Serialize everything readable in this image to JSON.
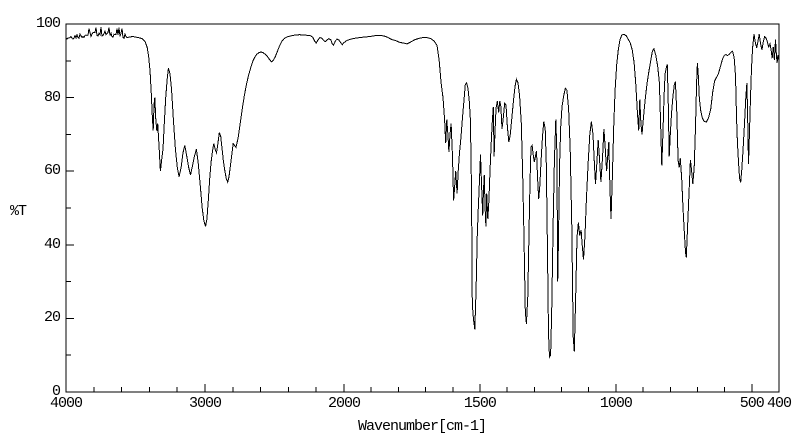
{
  "chart_data": {
    "type": "line",
    "title": "",
    "xlabel": "Wavenumber[cm-1]",
    "ylabel": "%T",
    "x_axis": {
      "min": 400,
      "max": 4000,
      "reversed": true,
      "scale_change_at": 2000,
      "major_ticks": [
        4000,
        3000,
        2000,
        1500,
        1000,
        500,
        400
      ],
      "minor_tick_step_high": 200,
      "minor_tick_step_low": 100
    },
    "y_axis": {
      "min": 0,
      "max": 100,
      "major_ticks": [
        100,
        80,
        60,
        40,
        20,
        0
      ],
      "minor_tick_step": 10
    },
    "line_color": "#000000",
    "background_color": "#ffffff",
    "grid": false,
    "legend": null,
    "noise_region": {
      "from": 4000,
      "to": 3560,
      "amplitude": 0.8
    },
    "points": [
      [
        4000,
        96.3
      ],
      [
        3960,
        96.6
      ],
      [
        3920,
        96.8
      ],
      [
        3880,
        97.0
      ],
      [
        3840,
        97.1
      ],
      [
        3800,
        97.3
      ],
      [
        3760,
        97.5
      ],
      [
        3720,
        97.4
      ],
      [
        3680,
        97.3
      ],
      [
        3640,
        97.2
      ],
      [
        3600,
        97.0
      ],
      [
        3560,
        96.8
      ],
      [
        3520,
        96.6
      ],
      [
        3480,
        96.3
      ],
      [
        3450,
        96.0
      ],
      [
        3430,
        95.2
      ],
      [
        3415,
        93.5
      ],
      [
        3405,
        91.0
      ],
      [
        3395,
        87.0
      ],
      [
        3386,
        81.0
      ],
      [
        3379,
        75.0
      ],
      [
        3373,
        71.0
      ],
      [
        3367,
        78.0
      ],
      [
        3361,
        80.0
      ],
      [
        3354,
        74.0
      ],
      [
        3347,
        71.0
      ],
      [
        3340,
        73.0
      ],
      [
        3331,
        67.0
      ],
      [
        3321,
        60.0
      ],
      [
        3312,
        63.0
      ],
      [
        3302,
        66.0
      ],
      [
        3293,
        73.0
      ],
      [
        3283,
        80.0
      ],
      [
        3272,
        85.0
      ],
      [
        3263,
        88.0
      ],
      [
        3252,
        86.5
      ],
      [
        3240,
        82.0
      ],
      [
        3227,
        74.0
      ],
      [
        3213,
        66.0
      ],
      [
        3199,
        61.0
      ],
      [
        3186,
        58.5
      ],
      [
        3172,
        61.0
      ],
      [
        3158,
        65.0
      ],
      [
        3145,
        67.0
      ],
      [
        3131,
        64.0
      ],
      [
        3117,
        61.0
      ],
      [
        3104,
        59.0
      ],
      [
        3090,
        61.5
      ],
      [
        3076,
        64.0
      ],
      [
        3062,
        66.0
      ],
      [
        3048,
        62.0
      ],
      [
        3034,
        56.0
      ],
      [
        3020,
        50.0
      ],
      [
        3008,
        46.5
      ],
      [
        2996,
        45.0
      ],
      [
        2986,
        47.0
      ],
      [
        2976,
        52.0
      ],
      [
        2966,
        58.0
      ],
      [
        2956,
        62.5
      ],
      [
        2946,
        65.5
      ],
      [
        2937,
        67.5
      ],
      [
        2927,
        66.0
      ],
      [
        2917,
        65.0
      ],
      [
        2907,
        67.5
      ],
      [
        2897,
        70.5
      ],
      [
        2887,
        69.5
      ],
      [
        2877,
        66.0
      ],
      [
        2867,
        62.5
      ],
      [
        2857,
        60.0
      ],
      [
        2847,
        58.0
      ],
      [
        2837,
        57.0
      ],
      [
        2827,
        58.5
      ],
      [
        2817,
        61.5
      ],
      [
        2807,
        64.5
      ],
      [
        2797,
        67.5
      ],
      [
        2787,
        67.0
      ],
      [
        2777,
        66.5
      ],
      [
        2762,
        69.0
      ],
      [
        2747,
        73.0
      ],
      [
        2732,
        77.0
      ],
      [
        2717,
        80.5
      ],
      [
        2702,
        83.5
      ],
      [
        2687,
        86.0
      ],
      [
        2672,
        88.0
      ],
      [
        2657,
        89.8
      ],
      [
        2642,
        91.0
      ],
      [
        2627,
        91.8
      ],
      [
        2612,
        92.2
      ],
      [
        2597,
        92.4
      ],
      [
        2582,
        92.2
      ],
      [
        2567,
        91.8
      ],
      [
        2552,
        91.2
      ],
      [
        2537,
        90.4
      ],
      [
        2522,
        89.7
      ],
      [
        2507,
        90.2
      ],
      [
        2492,
        91.3
      ],
      [
        2477,
        92.8
      ],
      [
        2462,
        94.2
      ],
      [
        2447,
        95.3
      ],
      [
        2432,
        96.0
      ],
      [
        2410,
        96.5
      ],
      [
        2380,
        96.8
      ],
      [
        2350,
        97.0
      ],
      [
        2320,
        97.1
      ],
      [
        2290,
        97.0
      ],
      [
        2260,
        96.9
      ],
      [
        2240,
        96.8
      ],
      [
        2225,
        96.4
      ],
      [
        2210,
        95.3
      ],
      [
        2200,
        94.8
      ],
      [
        2190,
        95.5
      ],
      [
        2175,
        96.3
      ],
      [
        2160,
        96.2
      ],
      [
        2148,
        95.6
      ],
      [
        2136,
        95.2
      ],
      [
        2124,
        95.6
      ],
      [
        2110,
        96.0
      ],
      [
        2095,
        95.7
      ],
      [
        2085,
        94.6
      ],
      [
        2075,
        94.3
      ],
      [
        2062,
        95.4
      ],
      [
        2050,
        95.9
      ],
      [
        2035,
        95.6
      ],
      [
        2022,
        94.8
      ],
      [
        2012,
        94.4
      ],
      [
        2002,
        94.9
      ],
      [
        1990,
        95.5
      ],
      [
        1975,
        95.9
      ],
      [
        1955,
        96.2
      ],
      [
        1930,
        96.4
      ],
      [
        1905,
        96.6
      ],
      [
        1880,
        96.9
      ],
      [
        1855,
        96.8
      ],
      [
        1840,
        96.4
      ],
      [
        1825,
        95.8
      ],
      [
        1810,
        95.5
      ],
      [
        1795,
        95.0
      ],
      [
        1780,
        94.8
      ],
      [
        1768,
        94.6
      ],
      [
        1755,
        95.1
      ],
      [
        1740,
        95.7
      ],
      [
        1725,
        96.1
      ],
      [
        1710,
        96.3
      ],
      [
        1695,
        96.3
      ],
      [
        1680,
        96.0
      ],
      [
        1668,
        95.3
      ],
      [
        1658,
        94.2
      ],
      [
        1650,
        90.0
      ],
      [
        1643,
        84.0
      ],
      [
        1636,
        80.0
      ],
      [
        1630,
        74.0
      ],
      [
        1626,
        67.6
      ],
      [
        1622,
        74.0
      ],
      [
        1618,
        70.0
      ],
      [
        1614,
        65.2
      ],
      [
        1610,
        70.0
      ],
      [
        1606,
        73.0
      ],
      [
        1601,
        64.0
      ],
      [
        1597,
        52.0
      ],
      [
        1593,
        56.0
      ],
      [
        1589,
        60.0
      ],
      [
        1584,
        54.0
      ],
      [
        1580,
        60.0
      ],
      [
        1575,
        65.0
      ],
      [
        1570,
        69.0
      ],
      [
        1565,
        74.0
      ],
      [
        1559,
        79.0
      ],
      [
        1554,
        83.5
      ],
      [
        1549,
        84.0
      ],
      [
        1544,
        82.5
      ],
      [
        1539,
        79.0
      ],
      [
        1535,
        74.0
      ],
      [
        1531,
        55.0
      ],
      [
        1528,
        24.0
      ],
      [
        1524,
        20.0
      ],
      [
        1519,
        17.0
      ],
      [
        1514,
        28.0
      ],
      [
        1510,
        42.0
      ],
      [
        1506,
        50.0
      ],
      [
        1502,
        57.0
      ],
      [
        1498,
        64.5
      ],
      [
        1494,
        56.0
      ],
      [
        1490,
        48.0
      ],
      [
        1487,
        55.0
      ],
      [
        1484,
        59.0
      ],
      [
        1481,
        50.0
      ],
      [
        1478,
        45.0
      ],
      [
        1475,
        54.0
      ],
      [
        1471,
        47.0
      ],
      [
        1467,
        52.0
      ],
      [
        1463,
        60.0
      ],
      [
        1459,
        67.0
      ],
      [
        1455,
        73.0
      ],
      [
        1451,
        77.5
      ],
      [
        1448,
        64.0
      ],
      [
        1445,
        70.0
      ],
      [
        1441,
        77.0
      ],
      [
        1436,
        79.0
      ],
      [
        1431,
        76.0
      ],
      [
        1427,
        79.0
      ],
      [
        1423,
        77.5
      ],
      [
        1419,
        71.5
      ],
      [
        1414,
        74.5
      ],
      [
        1409,
        78.5
      ],
      [
        1404,
        78.0
      ],
      [
        1399,
        72.0
      ],
      [
        1394,
        68.0
      ],
      [
        1389,
        69.5
      ],
      [
        1383,
        74.0
      ],
      [
        1377,
        79.0
      ],
      [
        1371,
        83.0
      ],
      [
        1366,
        85.0
      ],
      [
        1360,
        84.0
      ],
      [
        1354,
        80.5
      ],
      [
        1348,
        73.0
      ],
      [
        1343,
        60.0
      ],
      [
        1338,
        42.0
      ],
      [
        1333,
        22.0
      ],
      [
        1329,
        18.5
      ],
      [
        1324,
        26.0
      ],
      [
        1320,
        42.0
      ],
      [
        1316,
        57.0
      ],
      [
        1312,
        66.5
      ],
      [
        1308,
        67.0
      ],
      [
        1304,
        64.5
      ],
      [
        1300,
        62.5
      ],
      [
        1296,
        64.0
      ],
      [
        1292,
        65.5
      ],
      [
        1288,
        58.0
      ],
      [
        1284,
        52.5
      ],
      [
        1280,
        56.0
      ],
      [
        1275,
        63.0
      ],
      [
        1270,
        69.5
      ],
      [
        1265,
        73.5
      ],
      [
        1260,
        71.5
      ],
      [
        1256,
        62.0
      ],
      [
        1252,
        40.0
      ],
      [
        1248,
        16.0
      ],
      [
        1244,
        9.5
      ],
      [
        1240,
        10.0
      ],
      [
        1236,
        22.0
      ],
      [
        1231,
        45.0
      ],
      [
        1226,
        63.0
      ],
      [
        1221,
        74.0
      ],
      [
        1217,
        65.0
      ],
      [
        1214,
        30.0
      ],
      [
        1211,
        42.0
      ],
      [
        1207,
        62.0
      ],
      [
        1203,
        72.0
      ],
      [
        1198,
        77.5
      ],
      [
        1192,
        80.5
      ],
      [
        1186,
        82.5
      ],
      [
        1180,
        82.0
      ],
      [
        1174,
        77.0
      ],
      [
        1168,
        66.0
      ],
      [
        1162,
        45.0
      ],
      [
        1157,
        15.0
      ],
      [
        1153,
        11.0
      ],
      [
        1148,
        25.0
      ],
      [
        1143,
        42.0
      ],
      [
        1138,
        46.0
      ],
      [
        1133,
        42.5
      ],
      [
        1128,
        44.0
      ],
      [
        1124,
        40.0
      ],
      [
        1119,
        36.0
      ],
      [
        1114,
        42.0
      ],
      [
        1108,
        53.0
      ],
      [
        1102,
        62.0
      ],
      [
        1096,
        70.0
      ],
      [
        1090,
        73.5
      ],
      [
        1084,
        70.0
      ],
      [
        1079,
        62.0
      ],
      [
        1075,
        56.5
      ],
      [
        1070,
        62.0
      ],
      [
        1065,
        68.5
      ],
      [
        1060,
        63.0
      ],
      [
        1055,
        57.0
      ],
      [
        1049,
        64.0
      ],
      [
        1044,
        71.5
      ],
      [
        1039,
        66.0
      ],
      [
        1034,
        60.0
      ],
      [
        1030,
        64.0
      ],
      [
        1026,
        68.0
      ],
      [
        1022,
        56.0
      ],
      [
        1018,
        47.0
      ],
      [
        1013,
        58.0
      ],
      [
        1008,
        72.0
      ],
      [
        1003,
        82.0
      ],
      [
        997,
        89.0
      ],
      [
        991,
        93.0
      ],
      [
        985,
        95.8
      ],
      [
        978,
        97.0
      ],
      [
        970,
        97.2
      ],
      [
        962,
        96.8
      ],
      [
        954,
        95.8
      ],
      [
        947,
        94.8
      ],
      [
        940,
        93.0
      ],
      [
        933,
        89.5
      ],
      [
        927,
        84.0
      ],
      [
        921,
        76.0
      ],
      [
        916,
        71.0
      ],
      [
        912,
        79.5
      ],
      [
        908,
        73.0
      ],
      [
        904,
        70.0
      ],
      [
        898,
        75.0
      ],
      [
        892,
        79.5
      ],
      [
        886,
        83.5
      ],
      [
        880,
        86.5
      ],
      [
        873,
        89.5
      ],
      [
        866,
        92.5
      ],
      [
        860,
        93.3
      ],
      [
        853,
        91.5
      ],
      [
        846,
        88.5
      ],
      [
        840,
        84.0
      ],
      [
        835,
        72.0
      ],
      [
        831,
        61.5
      ],
      [
        827,
        70.0
      ],
      [
        823,
        80.0
      ],
      [
        819,
        86.5
      ],
      [
        815,
        88.0
      ],
      [
        811,
        89.0
      ],
      [
        807,
        78.0
      ],
      [
        804,
        64.0
      ],
      [
        800,
        70.0
      ],
      [
        795,
        76.0
      ],
      [
        790,
        80.5
      ],
      [
        785,
        83.5
      ],
      [
        781,
        84.3
      ],
      [
        776,
        76.0
      ],
      [
        771,
        63.0
      ],
      [
        767,
        61.0
      ],
      [
        763,
        63.5
      ],
      [
        758,
        58.0
      ],
      [
        753,
        50.0
      ],
      [
        748,
        43.0
      ],
      [
        744,
        38.0
      ],
      [
        741,
        36.6
      ],
      [
        736,
        45.0
      ],
      [
        731,
        54.0
      ],
      [
        726,
        63.0
      ],
      [
        722,
        60.5
      ],
      [
        717,
        56.5
      ],
      [
        712,
        61.0
      ],
      [
        707,
        72.0
      ],
      [
        703,
        84.0
      ],
      [
        700,
        89.4
      ],
      [
        697,
        86.0
      ],
      [
        693,
        80.0
      ],
      [
        688,
        76.5
      ],
      [
        682,
        74.5
      ],
      [
        675,
        73.5
      ],
      [
        667,
        73.4
      ],
      [
        659,
        74.5
      ],
      [
        651,
        77.0
      ],
      [
        644,
        81.5
      ],
      [
        637,
        84.5
      ],
      [
        630,
        85.5
      ],
      [
        623,
        86.5
      ],
      [
        615,
        88.5
      ],
      [
        608,
        90.5
      ],
      [
        601,
        91.5
      ],
      [
        595,
        91.7
      ],
      [
        589,
        91.4
      ],
      [
        583,
        91.8
      ],
      [
        577,
        92.3
      ],
      [
        571,
        92.6
      ],
      [
        565,
        91.0
      ],
      [
        560,
        86.0
      ],
      [
        556,
        74.0
      ],
      [
        553,
        68.0
      ],
      [
        549,
        62.5
      ],
      [
        545,
        58.0
      ],
      [
        541,
        57.0
      ],
      [
        537,
        60.5
      ],
      [
        532,
        66.0
      ],
      [
        527,
        73.0
      ],
      [
        522,
        80.0
      ],
      [
        518,
        84.0
      ],
      [
        515,
        74.0
      ],
      [
        512,
        62.0
      ],
      [
        509,
        70.0
      ],
      [
        505,
        80.0
      ],
      [
        501,
        88.0
      ],
      [
        497,
        93.5
      ],
      [
        492,
        97.3
      ],
      [
        487,
        95.0
      ],
      [
        482,
        93.5
      ],
      [
        477,
        95.5
      ],
      [
        473,
        97.2
      ],
      [
        468,
        94.8
      ],
      [
        463,
        93.0
      ],
      [
        458,
        95.0
      ],
      [
        453,
        96.6
      ],
      [
        448,
        96.2
      ],
      [
        443,
        95.2
      ],
      [
        438,
        93.8
      ],
      [
        433,
        94.6
      ],
      [
        429,
        93.0
      ],
      [
        425,
        90.7
      ],
      [
        421,
        93.8
      ],
      [
        417,
        90.2
      ],
      [
        413,
        95.8
      ],
      [
        410,
        92.0
      ],
      [
        407,
        89.4
      ],
      [
        404,
        91.5
      ],
      [
        400,
        90.0
      ]
    ]
  }
}
